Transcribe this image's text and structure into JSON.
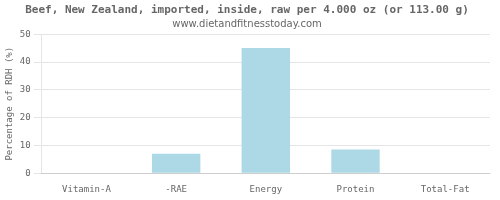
{
  "chart_data": {
    "type": "bar",
    "title": "Beef, New Zealand, imported, inside, raw per 4.000 oz (or 113.00 g)",
    "subtitle": "www.dietandfitnesstoday.com",
    "categories": [
      "Vitamin-A",
      "-RAE",
      "Energy",
      "Protein",
      "Total-Fat"
    ],
    "values": [
      0,
      7,
      45,
      8.5,
      0
    ],
    "color": "#add8e6",
    "ylabel": "Percentage of RDH (%)",
    "ylim": [
      0,
      50
    ],
    "yticks": [
      0,
      10,
      20,
      30,
      40,
      50
    ],
    "grid": true
  }
}
